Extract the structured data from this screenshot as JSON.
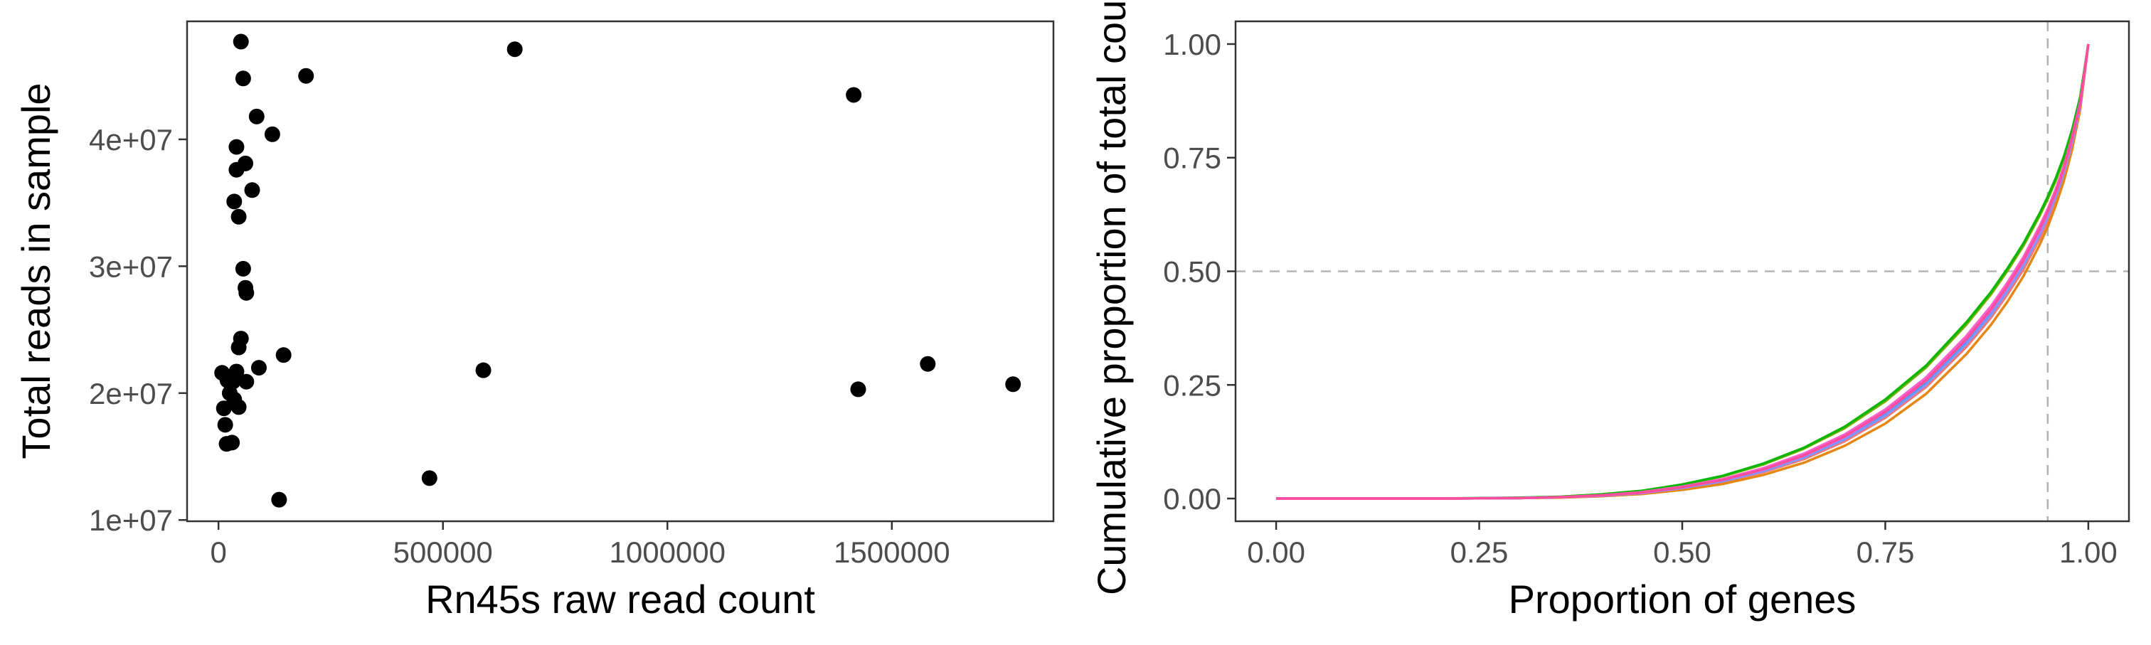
{
  "chart_data": [
    {
      "type": "scatter",
      "xlabel": "Rn45s raw read count",
      "ylabel": "Total reads in sample",
      "xlim": [
        -70000,
        1860000
      ],
      "ylim": [
        9900000,
        49300000
      ],
      "x_ticks": [
        0,
        500000,
        1000000,
        1500000
      ],
      "x_tick_labels": [
        "0",
        "500000",
        "1000000",
        "1500000"
      ],
      "y_ticks": [
        10000000,
        20000000,
        30000000,
        40000000
      ],
      "y_tick_labels": [
        "1e+07",
        "2e+07",
        "3e+07",
        "4e+07"
      ],
      "grid": false,
      "point_color": "#000000",
      "points": [
        {
          "x": 50000,
          "y": 47700000
        },
        {
          "x": 55000,
          "y": 44800000
        },
        {
          "x": 195000,
          "y": 45000000
        },
        {
          "x": 660000,
          "y": 47100000
        },
        {
          "x": 1415000,
          "y": 43500000
        },
        {
          "x": 85000,
          "y": 41800000
        },
        {
          "x": 120000,
          "y": 40400000
        },
        {
          "x": 40000,
          "y": 39400000
        },
        {
          "x": 60000,
          "y": 38100000
        },
        {
          "x": 40000,
          "y": 37600000
        },
        {
          "x": 75000,
          "y": 36000000
        },
        {
          "x": 35000,
          "y": 35100000
        },
        {
          "x": 45000,
          "y": 33900000
        },
        {
          "x": 55000,
          "y": 29800000
        },
        {
          "x": 60000,
          "y": 28300000
        },
        {
          "x": 62000,
          "y": 27900000
        },
        {
          "x": 50000,
          "y": 24300000
        },
        {
          "x": 45000,
          "y": 23600000
        },
        {
          "x": 145000,
          "y": 23000000
        },
        {
          "x": 8000,
          "y": 21600000
        },
        {
          "x": 40000,
          "y": 21700000
        },
        {
          "x": 90000,
          "y": 22000000
        },
        {
          "x": 20000,
          "y": 21000000
        },
        {
          "x": 32000,
          "y": 20900000
        },
        {
          "x": 62000,
          "y": 20900000
        },
        {
          "x": 590000,
          "y": 21800000
        },
        {
          "x": 1580000,
          "y": 22300000
        },
        {
          "x": 1770000,
          "y": 20700000
        },
        {
          "x": 1425000,
          "y": 20300000
        },
        {
          "x": 25000,
          "y": 20000000
        },
        {
          "x": 35000,
          "y": 19500000
        },
        {
          "x": 12000,
          "y": 18800000
        },
        {
          "x": 45000,
          "y": 18900000
        },
        {
          "x": 15000,
          "y": 17500000
        },
        {
          "x": 18000,
          "y": 16000000
        },
        {
          "x": 30000,
          "y": 16100000
        },
        {
          "x": 470000,
          "y": 13300000
        },
        {
          "x": 135000,
          "y": 11600000
        }
      ]
    },
    {
      "type": "line",
      "xlabel": "Proportion of genes",
      "ylabel": "Cumulative proportion of total counts",
      "xlim": [
        -0.05,
        1.05
      ],
      "ylim": [
        -0.05,
        1.05
      ],
      "x_ticks": [
        0,
        0.25,
        0.5,
        0.75,
        1
      ],
      "x_tick_labels": [
        "0.00",
        "0.25",
        "0.50",
        "0.75",
        "1.00"
      ],
      "y_ticks": [
        0,
        0.25,
        0.5,
        0.75,
        1
      ],
      "y_tick_labels": [
        "0.00",
        "0.25",
        "0.50",
        "0.75",
        "1.00"
      ],
      "grid": false,
      "legend": "none",
      "reference_lines": {
        "horizontal": 0.5,
        "vertical": 0.95,
        "color": "#b3b3b3",
        "style": "dashed"
      },
      "x": [
        0,
        0.1,
        0.2,
        0.3,
        0.35,
        0.4,
        0.45,
        0.5,
        0.55,
        0.6,
        0.65,
        0.7,
        0.75,
        0.8,
        0.85,
        0.88,
        0.9,
        0.92,
        0.94,
        0.95,
        0.96,
        0.97,
        0.98,
        0.99,
        1
      ],
      "series": [
        {
          "color": "#f8766d",
          "values": [
            0,
            0,
            0,
            0.001,
            0.003,
            0.006,
            0.012,
            0.022,
            0.037,
            0.058,
            0.087,
            0.126,
            0.178,
            0.245,
            0.334,
            0.398,
            0.448,
            0.504,
            0.572,
            0.611,
            0.656,
            0.709,
            0.775,
            0.86,
            1
          ]
        },
        {
          "color": "#e68613",
          "values": [
            0,
            0,
            0,
            0.001,
            0.002,
            0.005,
            0.01,
            0.019,
            0.032,
            0.052,
            0.079,
            0.116,
            0.165,
            0.23,
            0.318,
            0.382,
            0.432,
            0.489,
            0.558,
            0.598,
            0.645,
            0.7,
            0.768,
            0.856,
            1
          ]
        },
        {
          "color": "#7cae00",
          "values": [
            0,
            0,
            0,
            0.001,
            0.004,
            0.009,
            0.017,
            0.03,
            0.049,
            0.075,
            0.11,
            0.155,
            0.214,
            0.288,
            0.383,
            0.449,
            0.5,
            0.556,
            0.622,
            0.659,
            0.7,
            0.749,
            0.808,
            0.881,
            1
          ]
        },
        {
          "color": "#0cb702",
          "values": [
            0,
            0,
            0,
            0.002,
            0.004,
            0.009,
            0.017,
            0.031,
            0.05,
            0.077,
            0.112,
            0.158,
            0.218,
            0.292,
            0.388,
            0.454,
            0.505,
            0.561,
            0.627,
            0.664,
            0.705,
            0.753,
            0.811,
            0.884,
            1
          ]
        },
        {
          "color": "#00c19a",
          "values": [
            0,
            0,
            0,
            0.001,
            0.003,
            0.007,
            0.014,
            0.026,
            0.042,
            0.066,
            0.097,
            0.139,
            0.194,
            0.264,
            0.356,
            0.421,
            0.472,
            0.529,
            0.597,
            0.635,
            0.679,
            0.73,
            0.794,
            0.872,
            1
          ]
        },
        {
          "color": "#00a9ff",
          "values": [
            0,
            0,
            0,
            0.001,
            0.003,
            0.007,
            0.013,
            0.024,
            0.04,
            0.063,
            0.093,
            0.134,
            0.187,
            0.256,
            0.347,
            0.411,
            0.462,
            0.519,
            0.587,
            0.626,
            0.671,
            0.723,
            0.788,
            0.868,
            1
          ]
        },
        {
          "color": "#8494ff",
          "values": [
            0,
            0,
            0,
            0.001,
            0.003,
            0.006,
            0.012,
            0.023,
            0.038,
            0.06,
            0.09,
            0.13,
            0.182,
            0.25,
            0.34,
            0.404,
            0.455,
            0.512,
            0.58,
            0.619,
            0.664,
            0.717,
            0.783,
            0.865,
            1
          ]
        },
        {
          "color": "#ed68ed",
          "values": [
            0,
            0,
            0,
            0.001,
            0.003,
            0.007,
            0.013,
            0.025,
            0.041,
            0.064,
            0.095,
            0.136,
            0.19,
            0.259,
            0.35,
            0.414,
            0.465,
            0.522,
            0.59,
            0.629,
            0.673,
            0.725,
            0.79,
            0.869,
            1
          ]
        },
        {
          "color": "#ff61cc",
          "values": [
            0,
            0,
            0,
            0.001,
            0.003,
            0.007,
            0.014,
            0.026,
            0.043,
            0.067,
            0.099,
            0.141,
            0.196,
            0.266,
            0.358,
            0.423,
            0.474,
            0.531,
            0.599,
            0.637,
            0.681,
            0.732,
            0.796,
            0.873,
            1
          ]
        },
        {
          "color": "#ff4d9e",
          "values": [
            0,
            0,
            0,
            0.001,
            0.003,
            0.007,
            0.013,
            0.025,
            0.041,
            0.064,
            0.095,
            0.137,
            0.191,
            0.26,
            0.351,
            0.416,
            0.467,
            0.524,
            0.592,
            0.631,
            0.675,
            0.727,
            0.792,
            0.87,
            1
          ]
        }
      ]
    }
  ]
}
